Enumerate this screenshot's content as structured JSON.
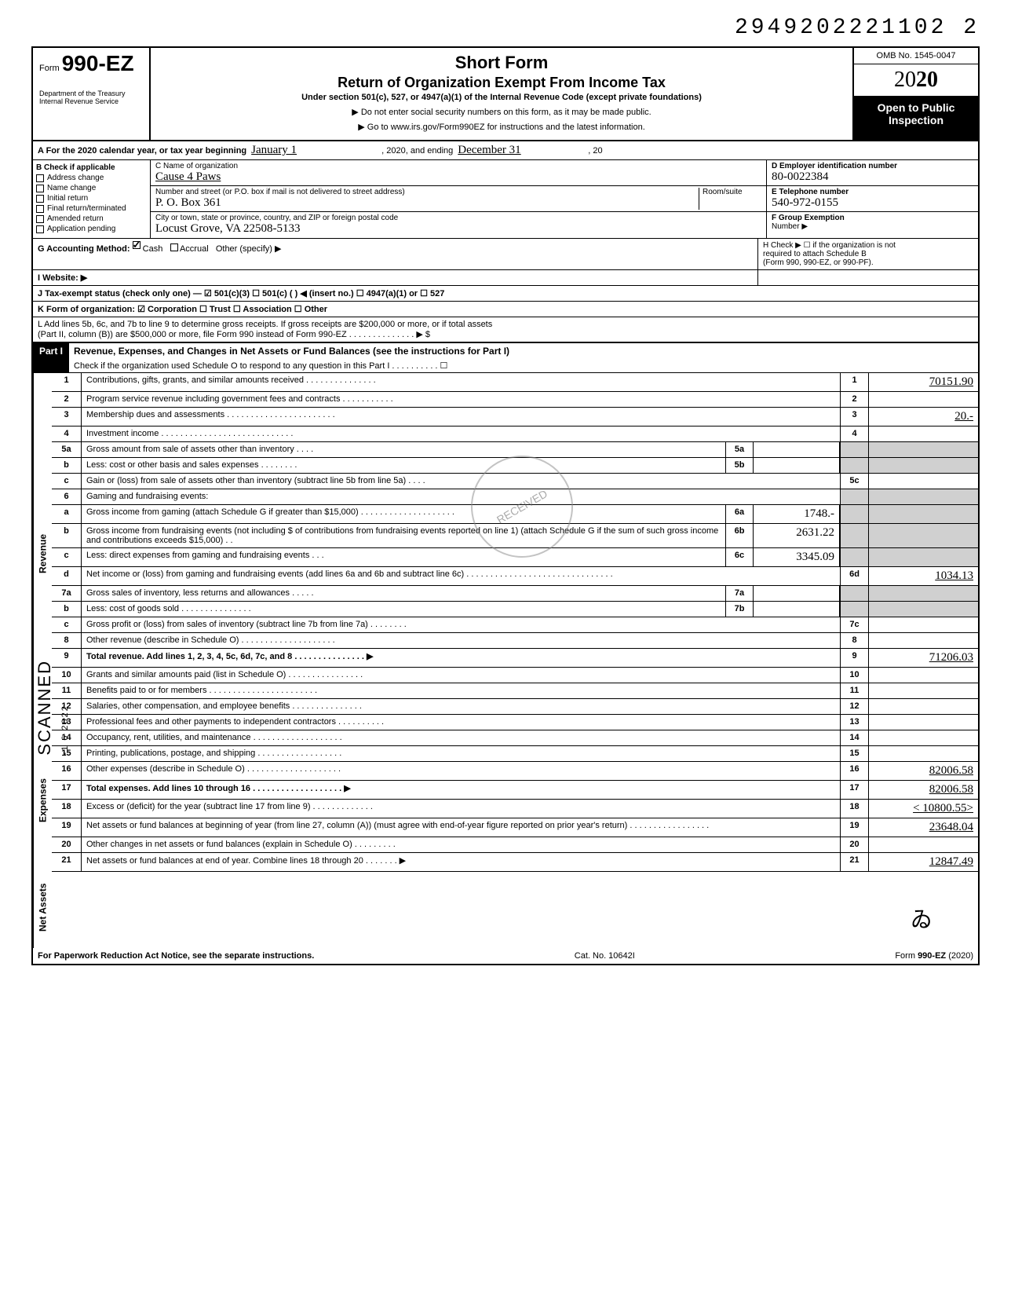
{
  "top_number": "2949202221102 2",
  "header": {
    "form_prefix": "Form",
    "form_number": "990-EZ",
    "dept1": "Department of the Treasury",
    "dept2": "Internal Revenue Service",
    "title1": "Short Form",
    "title2": "Return of Organization Exempt From Income Tax",
    "subtitle": "Under section 501(c), 527, or 4947(a)(1) of the Internal Revenue Code (except private foundations)",
    "arrow1": "▶ Do not enter social security numbers on this form, as it may be made public.",
    "arrow2": "▶ Go to www.irs.gov/Form990EZ for instructions and the latest information.",
    "omb": "OMB No. 1545-0047",
    "year_plain": "20",
    "year_bold": "20",
    "open1": "Open to Public",
    "open2": "Inspection"
  },
  "row_a": {
    "label": "A For the 2020 calendar year, or tax year beginning",
    "begin": "January 1",
    "mid": ", 2020, and ending",
    "end": "December 31",
    "tail": ", 20"
  },
  "col_b": {
    "header": "B Check if applicable",
    "items": [
      "Address change",
      "Name change",
      "Initial return",
      "Final return/terminated",
      "Amended return",
      "Application pending"
    ]
  },
  "col_c": {
    "name_label": "C Name of organization",
    "name": "Cause 4 Paws",
    "street_label": "Number and street (or P.O. box if mail is not delivered to street address)",
    "room_label": "Room/suite",
    "street": "P. O. Box 361",
    "city_label": "City or town, state or province, country, and ZIP or foreign postal code",
    "city": "Locust Grove, VA 22508-5133"
  },
  "col_d": {
    "label": "D Employer identification number",
    "value": "80-0022384"
  },
  "col_e": {
    "label": "E Telephone number",
    "value": "540-972-0155"
  },
  "col_f": {
    "label": "F Group Exemption",
    "label2": "Number ▶"
  },
  "row_g": {
    "label": "G Accounting Method:",
    "opts": [
      "Cash",
      "Accrual",
      "Other (specify) ▶"
    ]
  },
  "row_h": {
    "label": "H Check ▶ ☐ if the organization is not",
    "label2": "required to attach Schedule B",
    "label3": "(Form 990, 990-EZ, or 990-PF)."
  },
  "row_i": "I Website: ▶",
  "row_j": "J Tax-exempt status (check only one) — ☑ 501(c)(3)  ☐ 501(c) (      ) ◀ (insert no.) ☐ 4947(a)(1) or  ☐ 527",
  "row_k": "K Form of organization:  ☑ Corporation   ☐ Trust   ☐ Association   ☐ Other",
  "row_l1": "L Add lines 5b, 6c, and 7b to line 9 to determine gross receipts. If gross receipts are $200,000 or more, or if total assets",
  "row_l2": "(Part II, column (B)) are $500,000 or more, file Form 990 instead of Form 990-EZ . . . . . . . . . . . . . . ▶  $",
  "part1": {
    "label": "Part I",
    "title": "Revenue, Expenses, and Changes in Net Assets or Fund Balances (see the instructions for Part I)",
    "check": "Check if the organization used Schedule O to respond to any question in this Part I . . . . . . . . . . ☐"
  },
  "sides": {
    "revenue": "Revenue",
    "expenses": "Expenses",
    "netassets": "Net Assets"
  },
  "lines": [
    {
      "n": "1",
      "d": "Contributions, gifts, grants, and similar amounts received . . . . . . . . . . . . . . .",
      "en": "1",
      "ev": "70151.90"
    },
    {
      "n": "2",
      "d": "Program service revenue including government fees and contracts . . . . . . . . . . .",
      "en": "2",
      "ev": ""
    },
    {
      "n": "3",
      "d": "Membership dues and assessments . . . . . . . . . . . . . . . . . . . . . . .",
      "en": "3",
      "ev": "20.-"
    },
    {
      "n": "4",
      "d": "Investment income . . . . . . . . . . . . . . . . . . . . . . . . . . . .",
      "en": "4",
      "ev": ""
    },
    {
      "n": "5a",
      "d": "Gross amount from sale of assets other than inventory . . . .",
      "mn": "5a",
      "mv": "",
      "shaded": true
    },
    {
      "n": "b",
      "d": "Less: cost or other basis and sales expenses . . . . . . . .",
      "mn": "5b",
      "mv": "",
      "shaded": true
    },
    {
      "n": "c",
      "d": "Gain or (loss) from sale of assets other than inventory (subtract line 5b from line 5a) . . . .",
      "en": "5c",
      "ev": ""
    },
    {
      "n": "6",
      "d": "Gaming and fundraising events:",
      "shaded": true
    },
    {
      "n": "a",
      "d": "Gross income from gaming (attach Schedule G if greater than $15,000) . . . . . . . . . . . . . . . . . . . .",
      "mn": "6a",
      "mv": "1748.-",
      "shaded": true
    },
    {
      "n": "b",
      "d": "Gross income from fundraising events (not including  $                    of contributions from fundraising events reported on line 1) (attach Schedule G if the sum of such gross income and contributions exceeds $15,000) . .",
      "mn": "6b",
      "mv": "2631.22",
      "shaded": true
    },
    {
      "n": "c",
      "d": "Less: direct expenses from gaming and fundraising events  . . .",
      "mn": "6c",
      "mv": "3345.09",
      "shaded": true
    },
    {
      "n": "d",
      "d": "Net income or (loss) from gaming and fundraising events (add lines 6a and 6b and subtract line 6c) . . . . . . . . . . . . . . . . . . . . . . . . . . . . . . .",
      "en": "6d",
      "ev": "1034.13"
    },
    {
      "n": "7a",
      "d": "Gross sales of inventory, less returns and allowances . . . . .",
      "mn": "7a",
      "mv": "",
      "shaded": true
    },
    {
      "n": "b",
      "d": "Less: cost of goods sold . . . . . . . . . . . . . . .",
      "mn": "7b",
      "mv": "",
      "shaded": true
    },
    {
      "n": "c",
      "d": "Gross profit or (loss) from sales of inventory (subtract line 7b from line 7a) . . . . . . . .",
      "en": "7c",
      "ev": ""
    },
    {
      "n": "8",
      "d": "Other revenue (describe in Schedule O) . . . . . . . . . . . . . . . . . . . .",
      "en": "8",
      "ev": ""
    },
    {
      "n": "9",
      "d": "Total revenue. Add lines 1, 2, 3, 4, 5c, 6d, 7c, and 8 . . . . . . . . . . . . . . . ▶",
      "en": "9",
      "ev": "71206.03",
      "bold": true
    },
    {
      "n": "10",
      "d": "Grants and similar amounts paid (list in Schedule O) . . . . . . . . . . . . . . . .",
      "en": "10",
      "ev": ""
    },
    {
      "n": "11",
      "d": "Benefits paid to or for members . . . . . . . . . . . . . . . . . . . . . . .",
      "en": "11",
      "ev": ""
    },
    {
      "n": "12",
      "d": "Salaries, other compensation, and employee benefits . . . . . . . . . . . . . . .",
      "en": "12",
      "ev": ""
    },
    {
      "n": "13",
      "d": "Professional fees and other payments to independent contractors . . . . . . . . . .",
      "en": "13",
      "ev": ""
    },
    {
      "n": "14",
      "d": "Occupancy, rent, utilities, and maintenance . . . . . . . . . . . . . . . . . . .",
      "en": "14",
      "ev": ""
    },
    {
      "n": "15",
      "d": "Printing, publications, postage, and shipping . . . . . . . . . . . . . . . . . .",
      "en": "15",
      "ev": ""
    },
    {
      "n": "16",
      "d": "Other expenses (describe in Schedule O) . . . . . . . . . . . . . . . . . . . .",
      "en": "16",
      "ev": "82006.58"
    },
    {
      "n": "17",
      "d": "Total expenses. Add lines 10 through 16 . . . . . . . . . . . . . . . . . . . ▶",
      "en": "17",
      "ev": "82006.58",
      "bold": true
    },
    {
      "n": "18",
      "d": "Excess or (deficit) for the year (subtract line 17 from line 9) . . . . . . . . . . . . .",
      "en": "18",
      "ev": "< 10800.55>"
    },
    {
      "n": "19",
      "d": "Net assets or fund balances at beginning of year (from line 27, column (A)) (must agree with end-of-year figure reported on prior year's return) . . . . . . . . . . . . . . . . .",
      "en": "19",
      "ev": "23648.04"
    },
    {
      "n": "20",
      "d": "Other changes in net assets or fund balances (explain in Schedule O) . . . . . . . . .",
      "en": "20",
      "ev": ""
    },
    {
      "n": "21",
      "d": "Net assets or fund balances at end of year. Combine lines 18 through 20 . . . . . . . ▶",
      "en": "21",
      "ev": "12847.49"
    }
  ],
  "footer": {
    "left": "For Paperwork Reduction Act Notice, see the separate instructions.",
    "mid": "Cat. No. 10642I",
    "right": "Form 990-EZ (2020)"
  },
  "scanned": "SCANNED",
  "scanned_date": "-1 6 2022",
  "stamp": "RECEIVED"
}
